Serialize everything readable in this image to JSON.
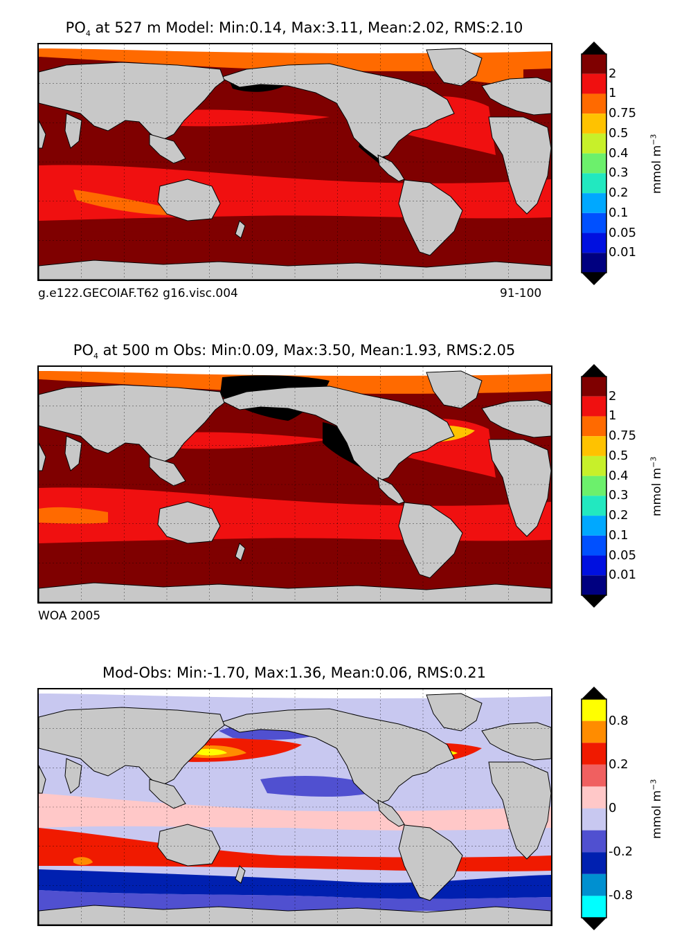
{
  "panels": [
    {
      "title_pre": "PO",
      "title_sub": "4",
      "title_post": "  at 527 m Model: Min:0.14, Max:3.11, Mean:2.02, RMS:2.10",
      "note_left": "g.e122.GECOIAF.T62 g16.visc.004",
      "note_right": "91-100",
      "colorbar": {
        "unit": "mmol m",
        "unit_exp": "−3",
        "ticks": [
          "2",
          "1",
          "0.75",
          "0.5",
          "0.4",
          "0.3",
          "0.2",
          "0.1",
          "0.05",
          "0.01"
        ],
        "colors": [
          "#7f0000",
          "#f01010",
          "#ff6a00",
          "#ffc200",
          "#c7f02a",
          "#6cf06c",
          "#22e8c0",
          "#00a8ff",
          "#0050ff",
          "#0010e0",
          "#000080"
        ]
      },
      "field_colors": {
        "ocean": "#7f0000",
        "band": "#f01010",
        "arctic": "#ff6a00",
        "anomaly": "#000000",
        "land": "#c8c8c8",
        "ice": "#ffffff"
      }
    },
    {
      "title_pre": "PO",
      "title_sub": "4",
      "title_post": "  at 500 m Obs: Min:0.09, Max:3.50, Mean:1.93, RMS:2.05",
      "note_left": "WOA 2005",
      "note_right": "",
      "colorbar": {
        "unit": "mmol m",
        "unit_exp": "−3",
        "ticks": [
          "2",
          "1",
          "0.75",
          "0.5",
          "0.4",
          "0.3",
          "0.2",
          "0.1",
          "0.05",
          "0.01"
        ],
        "colors": [
          "#7f0000",
          "#f01010",
          "#ff6a00",
          "#ffc200",
          "#c7f02a",
          "#6cf06c",
          "#22e8c0",
          "#00a8ff",
          "#0050ff",
          "#0010e0",
          "#000080"
        ]
      },
      "field_colors": {
        "ocean": "#7f0000",
        "band": "#f01010",
        "arctic": "#ff6a00",
        "anomaly": "#000000",
        "land": "#c8c8c8",
        "ice": "#ffffff"
      }
    },
    {
      "title_pre": "Mod-Obs: Min:-1.70, Max:1.36, Mean:0.06, RMS:0.21",
      "title_sub": "",
      "title_post": "",
      "note_left": "",
      "note_right": "",
      "colorbar": {
        "unit": "mmol m",
        "unit_exp": "−3",
        "ticks": [
          "0.8",
          "",
          "0.2",
          "",
          "0",
          "",
          "-0.2",
          "",
          "-0.8",
          ""
        ],
        "colors": [
          "#ffff00",
          "#ff8c00",
          "#f01a00",
          "#f06060",
          "#ffc8c8",
          "#c8c8f0",
          "#5050d0",
          "#0020b0",
          "#0090d0",
          "#00ffff"
        ]
      },
      "field_colors": {
        "ocean": "#c8c8f0",
        "band": "#f01a00",
        "arctic": "#ffc8c8",
        "anomaly": "#ffff00",
        "land": "#c8c8c8",
        "ice": "#ffffff"
      }
    }
  ]
}
